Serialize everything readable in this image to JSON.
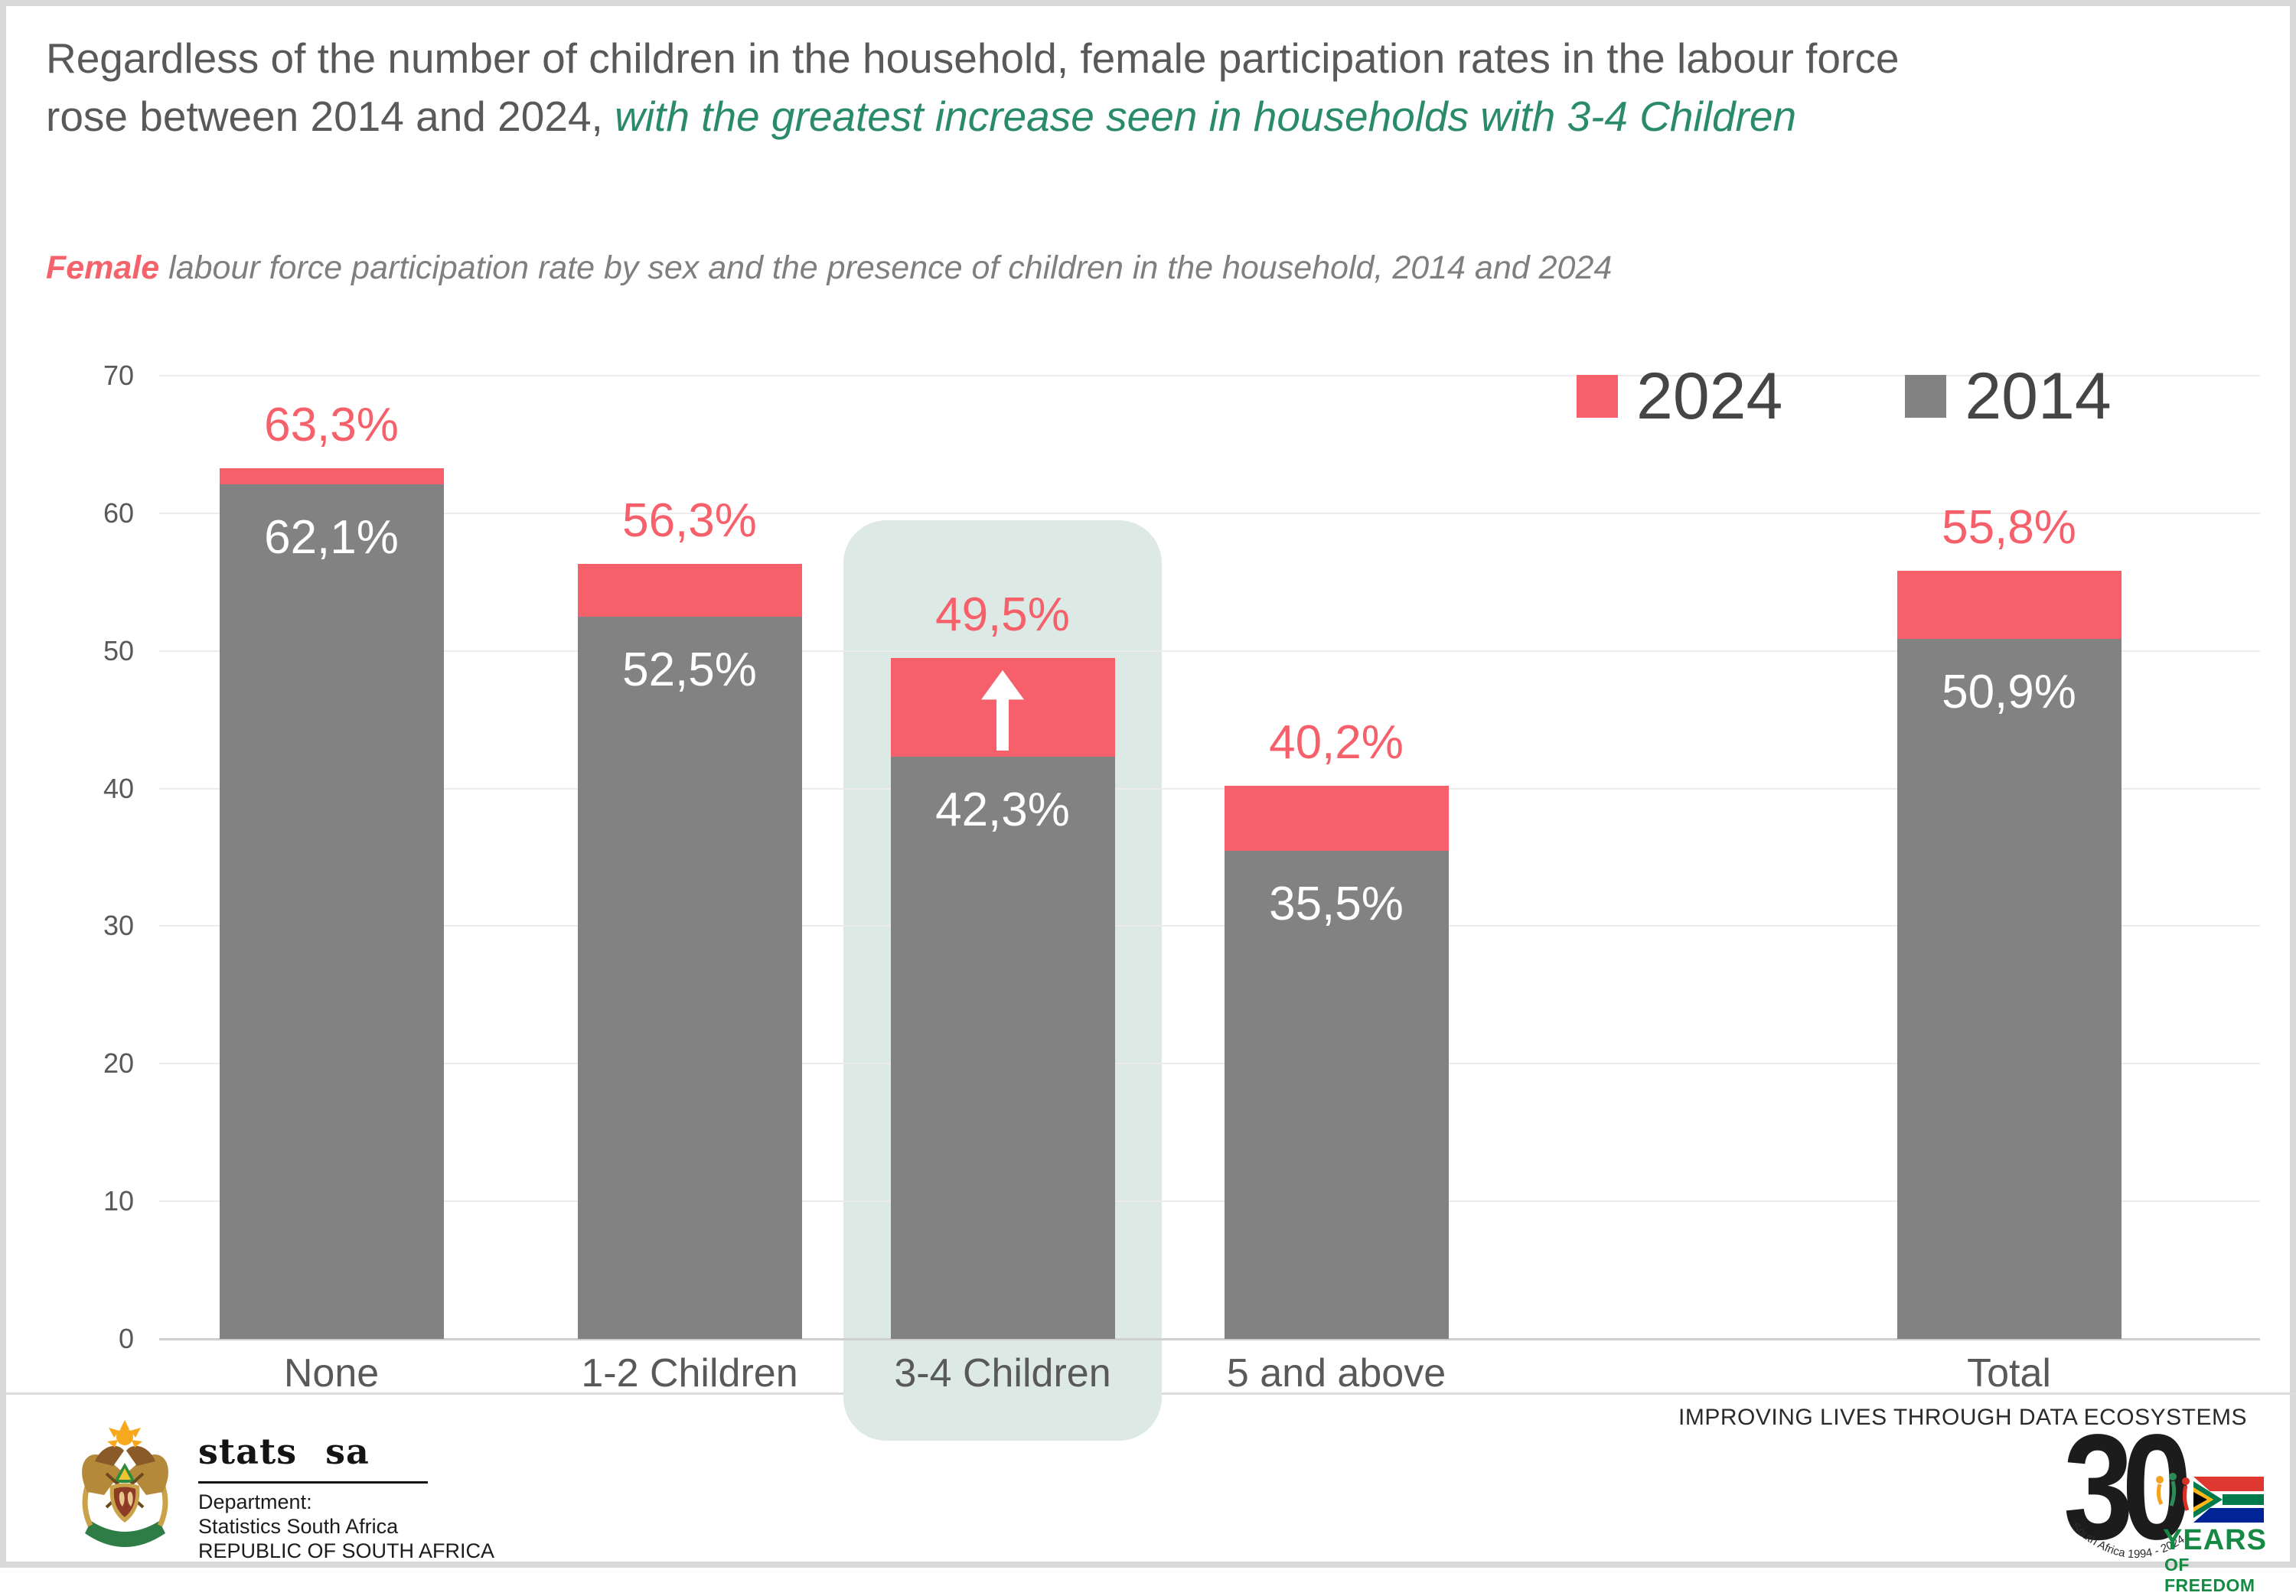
{
  "header": {
    "title_line1": "Regardless of the number of children in the household, female participation rates in the labour force",
    "title_line2_plain": "rose between 2014 and 2024, ",
    "title_highlight": "with the greatest increase seen in households with 3-4 Children",
    "title_color": "#595959",
    "title_highlight_color": "#2a8a6c",
    "subtitle_emphasis": "Female",
    "subtitle_rest": " labour force participation rate by sex and the presence of children in the household, 2014 and 2024",
    "subtitle_emphasis_color": "#f4636c"
  },
  "chart_data": {
    "type": "bar",
    "title": "Female labour force participation rate by sex and the presence of children in the household, 2014 and 2024",
    "categories": [
      "None",
      "1-2 Children",
      "3-4 Children",
      "5 and above",
      "Total"
    ],
    "series": [
      {
        "name": "2024",
        "color": "#f5606a",
        "values": [
          63.3,
          56.3,
          49.5,
          40.2,
          55.8
        ],
        "labels": [
          "63,3%",
          "56,3%",
          "49,5%",
          "40,2%",
          "55,8%"
        ]
      },
      {
        "name": "2014",
        "color": "#828282",
        "values": [
          62.1,
          52.5,
          42.3,
          35.5,
          50.9
        ],
        "labels": [
          "62,1%",
          "52,5%",
          "42,3%",
          "35,5%",
          "50,9%"
        ]
      }
    ],
    "value_label_colors": {
      "2024": "#f5606a",
      "2014": "#ffffff"
    },
    "xlabel": "",
    "ylabel": "",
    "ylim": [
      0,
      70
    ],
    "yticks": [
      0,
      10,
      20,
      30,
      40,
      50,
      60,
      70
    ],
    "grid": true,
    "legend_position": "top-right",
    "bar_style": "overlay",
    "highlighted_category": "3-4 Children",
    "highlight_color": "#dde9e4",
    "annotation": "white up-arrow inside highlighted bar increase segment"
  },
  "footer": {
    "left": {
      "logo": "south-africa-coat-of-arms",
      "brand": "stats sa",
      "dept_line1": "Department:",
      "dept_line2": "Statistics South Africa",
      "dept_line3": "REPUBLIC OF SOUTH AFRICA"
    },
    "right": {
      "tagline": "IMPROVING LIVES THROUGH DATA ECOSYSTEMS",
      "anniversary_number": "30",
      "anniversary_word1": "YEARS",
      "anniversary_word2": "OF FREEDOM",
      "anniversary_arc": "South Africa 1994 - 2024"
    }
  }
}
